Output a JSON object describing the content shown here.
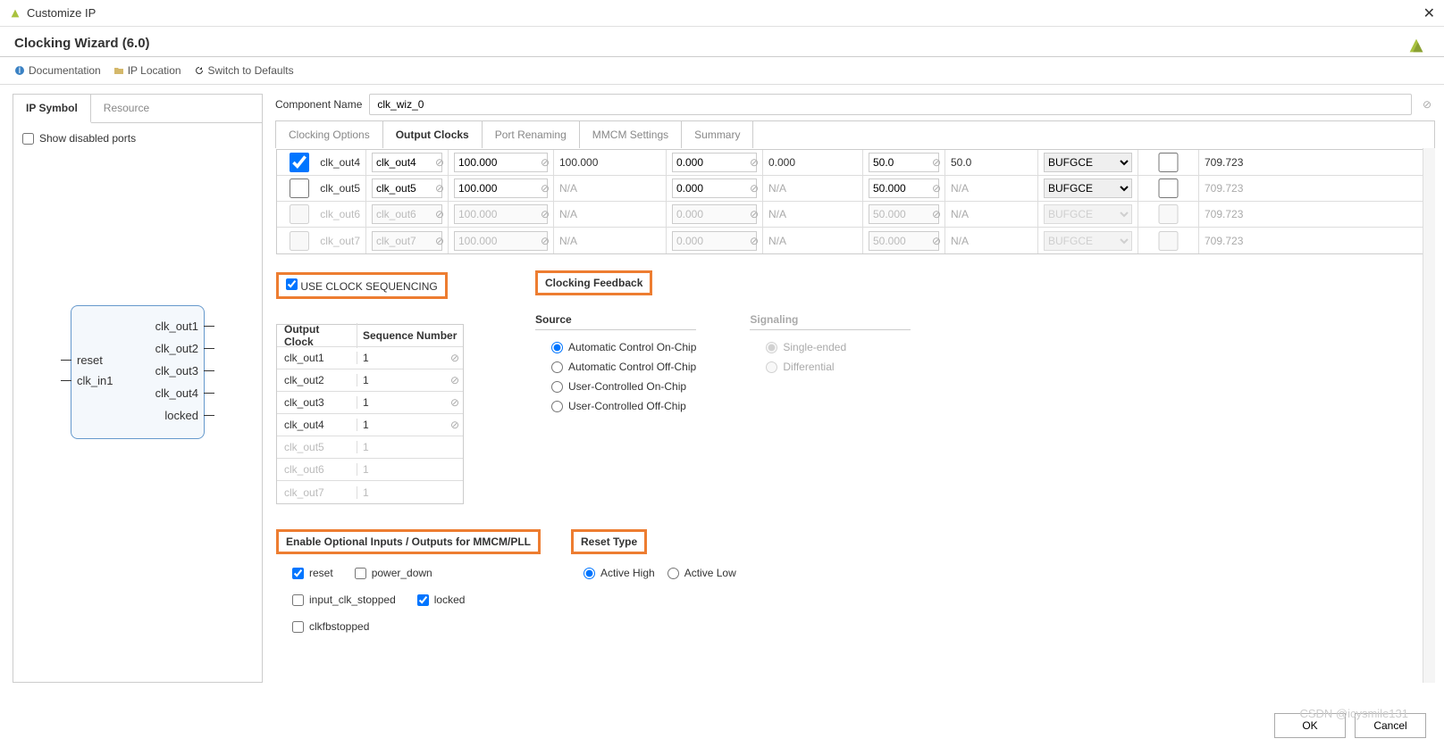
{
  "window": {
    "title": "Customize IP"
  },
  "header": {
    "title": "Clocking Wizard (6.0)"
  },
  "links": {
    "documentation": "Documentation",
    "ip_location": "IP Location",
    "switch_defaults": "Switch to Defaults"
  },
  "left_panel": {
    "tabs": [
      "IP Symbol",
      "Resource"
    ],
    "active_tab": 0,
    "show_disabled_label": "Show disabled ports",
    "show_disabled_checked": false,
    "ports_left": [
      "reset",
      "clk_in1"
    ],
    "ports_right": [
      "clk_out1",
      "clk_out2",
      "clk_out3",
      "clk_out4",
      "locked"
    ]
  },
  "component": {
    "label": "Component Name",
    "value": "clk_wiz_0"
  },
  "config_tabs": {
    "items": [
      "Clocking Options",
      "Output Clocks",
      "Port Renaming",
      "MMCM Settings",
      "Summary"
    ],
    "active": 1
  },
  "clk_rows": [
    {
      "enabled": true,
      "checked": true,
      "name": "clk_out4",
      "port": "clk_out4",
      "req": "100.000",
      "actual": "100.000",
      "phase": "0.000",
      "phase_actual": "0.000",
      "duty": "50.0",
      "duty_actual": "50.0",
      "drive": "BUFGCE",
      "max_buf": false,
      "val": "709.723"
    },
    {
      "enabled": true,
      "checked": false,
      "name": "clk_out5",
      "port": "clk_out5",
      "req": "100.000",
      "actual": "N/A",
      "phase": "0.000",
      "phase_actual": "N/A",
      "duty": "50.000",
      "duty_actual": "N/A",
      "drive": "BUFGCE",
      "max_buf": false,
      "val": "709.723"
    },
    {
      "enabled": false,
      "checked": false,
      "name": "clk_out6",
      "port": "clk_out6",
      "req": "100.000",
      "actual": "N/A",
      "phase": "0.000",
      "phase_actual": "N/A",
      "duty": "50.000",
      "duty_actual": "N/A",
      "drive": "BUFGCE",
      "max_buf": false,
      "val": "709.723"
    },
    {
      "enabled": false,
      "checked": false,
      "name": "clk_out7",
      "port": "clk_out7",
      "req": "100.000",
      "actual": "N/A",
      "phase": "0.000",
      "phase_actual": "N/A",
      "duty": "50.000",
      "duty_actual": "N/A",
      "drive": "BUFGCE",
      "max_buf": false,
      "val": "709.723"
    }
  ],
  "sequencing": {
    "label": "USE CLOCK SEQUENCING",
    "checked": true,
    "headers": [
      "Output Clock",
      "Sequence Number"
    ],
    "rows": [
      {
        "name": "clk_out1",
        "seq": "1",
        "enabled": true
      },
      {
        "name": "clk_out2",
        "seq": "1",
        "enabled": true
      },
      {
        "name": "clk_out3",
        "seq": "1",
        "enabled": true
      },
      {
        "name": "clk_out4",
        "seq": "1",
        "enabled": true
      },
      {
        "name": "clk_out5",
        "seq": "1",
        "enabled": false
      },
      {
        "name": "clk_out6",
        "seq": "1",
        "enabled": false
      },
      {
        "name": "clk_out7",
        "seq": "1",
        "enabled": false
      }
    ]
  },
  "feedback": {
    "title": "Clocking Feedback",
    "source": {
      "title": "Source",
      "options": [
        "Automatic Control On-Chip",
        "Automatic Control Off-Chip",
        "User-Controlled On-Chip",
        "User-Controlled Off-Chip"
      ],
      "selected": 0
    },
    "signaling": {
      "title": "Signaling",
      "options": [
        "Single-ended",
        "Differential"
      ],
      "selected": 0,
      "disabled": true
    }
  },
  "optional_io": {
    "title": "Enable Optional Inputs / Outputs for MMCM/PLL",
    "items": [
      {
        "label": "reset",
        "checked": true
      },
      {
        "label": "power_down",
        "checked": false
      },
      {
        "label": "input_clk_stopped",
        "checked": false
      },
      {
        "label": "locked",
        "checked": true
      },
      {
        "label": "clkfbstopped",
        "checked": false
      }
    ]
  },
  "reset_type": {
    "title": "Reset Type",
    "options": [
      "Active High",
      "Active Low"
    ],
    "selected": 0
  },
  "footer": {
    "ok": "OK",
    "cancel": "Cancel"
  },
  "watermark": "CSDN @icysmile131",
  "colors": {
    "highlight": "#ed7d31",
    "border": "#cccccc",
    "symbol_border": "#6699cc",
    "symbol_bg": "#f4f8fc"
  }
}
